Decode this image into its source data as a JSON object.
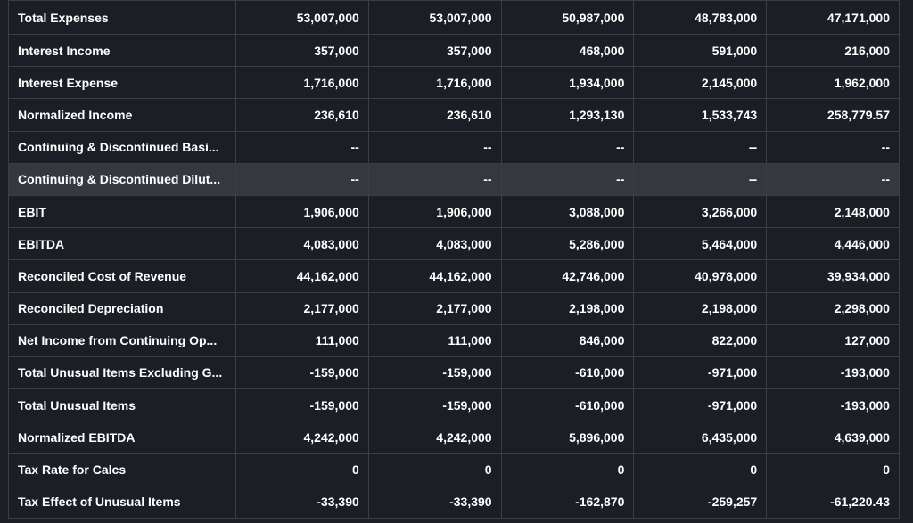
{
  "rows": [
    {
      "label": "Total Expenses",
      "values": [
        "53,007,000",
        "53,007,000",
        "50,987,000",
        "48,783,000",
        "47,171,000"
      ]
    },
    {
      "label": "Interest Income",
      "values": [
        "357,000",
        "357,000",
        "468,000",
        "591,000",
        "216,000"
      ]
    },
    {
      "label": "Interest Expense",
      "values": [
        "1,716,000",
        "1,716,000",
        "1,934,000",
        "2,145,000",
        "1,962,000"
      ]
    },
    {
      "label": "Normalized Income",
      "values": [
        "236,610",
        "236,610",
        "1,293,130",
        "1,533,743",
        "258,779.57"
      ]
    },
    {
      "label": "Continuing & Discontinued Basi...",
      "values": [
        "--",
        "--",
        "--",
        "--",
        "--"
      ]
    },
    {
      "label": "Continuing & Discontinued Dilut...",
      "values": [
        "--",
        "--",
        "--",
        "--",
        "--"
      ],
      "highlighted": true
    },
    {
      "label": "EBIT",
      "values": [
        "1,906,000",
        "1,906,000",
        "3,088,000",
        "3,266,000",
        "2,148,000"
      ]
    },
    {
      "label": "EBITDA",
      "values": [
        "4,083,000",
        "4,083,000",
        "5,286,000",
        "5,464,000",
        "4,446,000"
      ]
    },
    {
      "label": "Reconciled Cost of Revenue",
      "values": [
        "44,162,000",
        "44,162,000",
        "42,746,000",
        "40,978,000",
        "39,934,000"
      ]
    },
    {
      "label": "Reconciled Depreciation",
      "values": [
        "2,177,000",
        "2,177,000",
        "2,198,000",
        "2,198,000",
        "2,298,000"
      ]
    },
    {
      "label": "Net Income from Continuing Op...",
      "values": [
        "111,000",
        "111,000",
        "846,000",
        "822,000",
        "127,000"
      ]
    },
    {
      "label": "Total Unusual Items Excluding G...",
      "values": [
        "-159,000",
        "-159,000",
        "-610,000",
        "-971,000",
        "-193,000"
      ]
    },
    {
      "label": "Total Unusual Items",
      "values": [
        "-159,000",
        "-159,000",
        "-610,000",
        "-971,000",
        "-193,000"
      ]
    },
    {
      "label": "Normalized EBITDA",
      "values": [
        "4,242,000",
        "4,242,000",
        "5,896,000",
        "6,435,000",
        "4,639,000"
      ]
    },
    {
      "label": "Tax Rate for Calcs",
      "values": [
        "0",
        "0",
        "0",
        "0",
        "0"
      ]
    },
    {
      "label": "Tax Effect of Unusual Items",
      "values": [
        "-33,390",
        "-33,390",
        "-162,870",
        "-259,257",
        "-61,220.43"
      ]
    }
  ]
}
